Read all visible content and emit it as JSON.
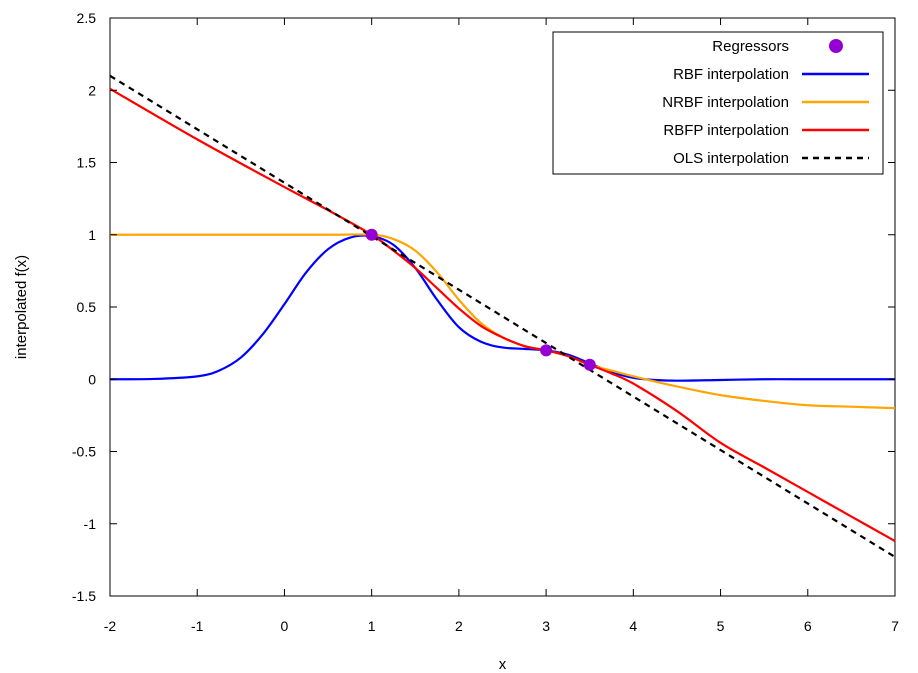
{
  "chart_data": {
    "type": "line",
    "title": "",
    "xlabel": "x",
    "ylabel": "interpolated f(x)",
    "xlim": [
      -2,
      7
    ],
    "ylim": [
      -1.5,
      2.5
    ],
    "x_ticks": [
      "-2",
      "-1",
      "0",
      "1",
      "2",
      "3",
      "4",
      "5",
      "6",
      "7"
    ],
    "y_ticks": [
      "-1.5",
      "-1",
      "-0.5",
      "0",
      "0.5",
      "1",
      "1.5",
      "2",
      "2.5"
    ],
    "grid": false,
    "legend_position": "top-right",
    "legend": [
      {
        "label": "Regressors",
        "style": "points",
        "color": "#9400d3"
      },
      {
        "label": "RBF interpolation",
        "style": "solid",
        "color": "#0000ff"
      },
      {
        "label": "NRBF interpolation",
        "style": "solid",
        "color": "#ffa500"
      },
      {
        "label": "RBFP interpolation",
        "style": "solid",
        "color": "#ff0000"
      },
      {
        "label": "OLS interpolation",
        "style": "dashed",
        "color": "#000000"
      }
    ],
    "series": [
      {
        "name": "Regressors",
        "kind": "scatter",
        "color": "#9400d3",
        "x": [
          1,
          3,
          3.5
        ],
        "y": [
          1,
          0.2,
          0.1
        ]
      },
      {
        "name": "RBF interpolation",
        "kind": "line",
        "color": "#0000ff",
        "x": [
          -2,
          -1.5,
          -1,
          -0.75,
          -0.5,
          -0.25,
          0,
          0.25,
          0.5,
          0.75,
          1,
          1.25,
          1.5,
          1.75,
          2,
          2.25,
          2.5,
          2.75,
          3,
          3.25,
          3.5,
          3.75,
          4,
          4.25,
          4.5,
          5,
          5.5,
          6,
          6.5,
          7
        ],
        "y": [
          0,
          0.002,
          0.02,
          0.06,
          0.15,
          0.31,
          0.52,
          0.74,
          0.9,
          0.98,
          0.99,
          0.93,
          0.77,
          0.55,
          0.36,
          0.26,
          0.22,
          0.21,
          0.2,
          0.17,
          0.11,
          0.05,
          0.01,
          -0.005,
          -0.01,
          -0.005,
          0,
          0,
          0,
          0
        ]
      },
      {
        "name": "NRBF interpolation",
        "kind": "line",
        "color": "#ffa500",
        "x": [
          -2,
          -1,
          0,
          0.5,
          1,
          1.25,
          1.5,
          1.75,
          2,
          2.25,
          2.5,
          2.75,
          3,
          3.25,
          3.5,
          3.75,
          4,
          4.5,
          5,
          5.5,
          6,
          6.5,
          7
        ],
        "y": [
          1,
          1,
          1,
          1,
          1,
          0.97,
          0.89,
          0.74,
          0.55,
          0.39,
          0.29,
          0.23,
          0.2,
          0.16,
          0.1,
          0.06,
          0.02,
          -0.05,
          -0.11,
          -0.15,
          -0.18,
          -0.19,
          -0.2
        ]
      },
      {
        "name": "RBFP interpolation",
        "kind": "line",
        "color": "#ff0000",
        "x": [
          -2,
          -1,
          0,
          0.5,
          1,
          1.25,
          1.5,
          1.75,
          2,
          2.25,
          2.5,
          2.75,
          3,
          3.25,
          3.5,
          3.75,
          4,
          4.5,
          5,
          5.5,
          6,
          6.5,
          7
        ],
        "y": [
          2.01,
          1.66,
          1.33,
          1.17,
          1,
          0.89,
          0.77,
          0.63,
          0.49,
          0.37,
          0.29,
          0.23,
          0.2,
          0.16,
          0.1,
          0.04,
          -0.03,
          -0.22,
          -0.44,
          -0.61,
          -0.78,
          -0.95,
          -1.12
        ]
      },
      {
        "name": "OLS interpolation",
        "kind": "line",
        "dashed": true,
        "color": "#000000",
        "x": [
          -2,
          7
        ],
        "y": [
          2.1,
          -1.23
        ]
      }
    ]
  }
}
